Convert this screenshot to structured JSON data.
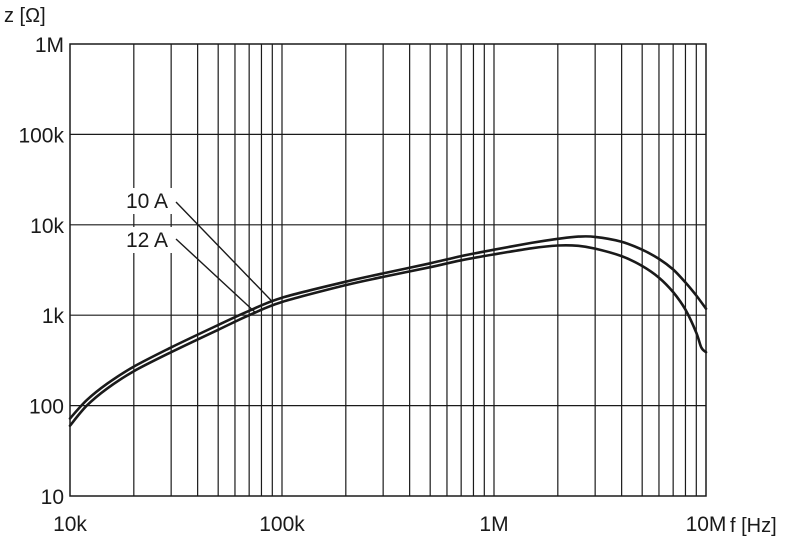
{
  "chart_data": {
    "type": "line",
    "xlabel": "f [Hz]",
    "ylabel": "z [Ω]",
    "xscale": "log",
    "yscale": "log",
    "xlim": [
      10000,
      10000000
    ],
    "ylim": [
      10,
      1000000
    ],
    "x_ticks": [
      {
        "value": 10000,
        "label": "10k"
      },
      {
        "value": 100000,
        "label": "100k"
      },
      {
        "value": 1000000,
        "label": "1M"
      },
      {
        "value": 10000000,
        "label": "10M"
      }
    ],
    "y_ticks": [
      {
        "value": 10,
        "label": "10"
      },
      {
        "value": 100,
        "label": "100"
      },
      {
        "value": 1000,
        "label": "1k"
      },
      {
        "value": 10000,
        "label": "10k"
      },
      {
        "value": 100000,
        "label": "100k"
      },
      {
        "value": 1000000,
        "label": "1M"
      }
    ],
    "grid": true,
    "series": [
      {
        "name": "10 A",
        "x": [
          10000,
          12000,
          15000,
          20000,
          30000,
          50000,
          70000,
          100000,
          200000,
          300000,
          500000,
          700000,
          1000000,
          1500000,
          2000000,
          2500000,
          3000000,
          4000000,
          5000000,
          6000000,
          7000000,
          8000000,
          9000000,
          10000000
        ],
        "values": [
          72,
          115,
          175,
          270,
          440,
          780,
          1120,
          1560,
          2350,
          2900,
          3750,
          4500,
          5300,
          6300,
          7000,
          7400,
          7350,
          6500,
          5300,
          4200,
          3200,
          2300,
          1650,
          1180
        ]
      },
      {
        "name": "12 A",
        "x": [
          10000,
          12000,
          15000,
          20000,
          30000,
          50000,
          70000,
          100000,
          200000,
          300000,
          500000,
          700000,
          1000000,
          1500000,
          2000000,
          2500000,
          3000000,
          4000000,
          5000000,
          6000000,
          7000000,
          8000000,
          9000000,
          9500000,
          10000000
        ],
        "values": [
          60,
          100,
          155,
          240,
          390,
          690,
          1000,
          1400,
          2150,
          2650,
          3400,
          4050,
          4700,
          5500,
          5900,
          5850,
          5450,
          4500,
          3500,
          2600,
          1800,
          1150,
          640,
          440,
          390
        ]
      }
    ],
    "annotations": [
      {
        "text": "10 A",
        "series": 0
      },
      {
        "text": "12 A",
        "series": 1
      }
    ]
  }
}
